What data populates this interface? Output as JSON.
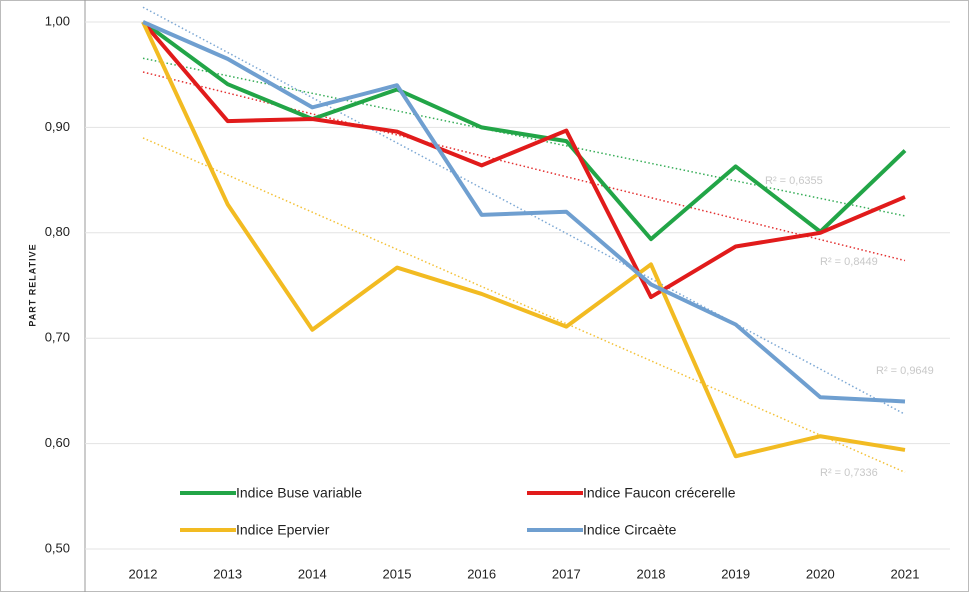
{
  "chart_data": {
    "type": "line",
    "y_label": "PART RELATIVE",
    "categories": [
      "2012",
      "2013",
      "2014",
      "2015",
      "2016",
      "2017",
      "2018",
      "2019",
      "2020",
      "2021"
    ],
    "ylim": [
      0.5,
      1.0
    ],
    "yticks": [
      {
        "value": 0.5,
        "label": "0,50"
      },
      {
        "value": 0.6,
        "label": "0,60"
      },
      {
        "value": 0.7,
        "label": "0,70"
      },
      {
        "value": 0.8,
        "label": "0,80"
      },
      {
        "value": 0.9,
        "label": "0,90"
      },
      {
        "value": 1.0,
        "label": "1,00"
      }
    ],
    "grid": true,
    "trendline": "linear",
    "series": [
      {
        "name": "Indice Buse variable",
        "color": "#22a547",
        "values": [
          1.0,
          0.941,
          0.908,
          0.936,
          0.9,
          0.887,
          0.794,
          0.863,
          0.801,
          0.878
        ],
        "trendline_label": "R² = 0,6355"
      },
      {
        "name": "Indice Faucon crécerelle",
        "color": "#e11b1b",
        "values": [
          1.0,
          0.906,
          0.908,
          0.896,
          0.864,
          0.897,
          0.739,
          0.787,
          0.8,
          0.834
        ],
        "trendline_label": "R² = 0,8449"
      },
      {
        "name": "Indice Epervier",
        "color": "#f2bb22",
        "values": [
          1.0,
          0.827,
          0.708,
          0.767,
          0.742,
          0.711,
          0.77,
          0.588,
          0.607,
          0.594
        ],
        "trendline_label": "R² = 0,7336"
      },
      {
        "name": "Indice Circaète",
        "color": "#6f9fd0",
        "values": [
          1.0,
          0.965,
          0.919,
          0.94,
          0.817,
          0.82,
          0.751,
          0.713,
          0.644,
          0.64
        ],
        "trendline_label": "R² = 0,9649"
      }
    ]
  }
}
